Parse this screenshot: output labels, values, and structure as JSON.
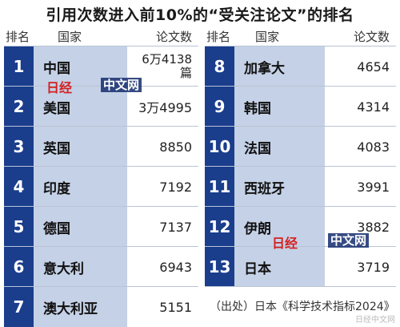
{
  "title": "引用次数进入前10%的“受关注论文”的排名",
  "headers": {
    "rank": "排名",
    "country": "国家",
    "count": "论文数"
  },
  "left_rows": [
    {
      "rank": "1",
      "country": "中国",
      "count_line1": "6万4138",
      "count_line2": "篇"
    },
    {
      "rank": "2",
      "country": "美国",
      "count_line1": "3万4995",
      "count_line2": ""
    },
    {
      "rank": "3",
      "country": "英国",
      "count_line1": "8850",
      "count_line2": ""
    },
    {
      "rank": "4",
      "country": "印度",
      "count_line1": "7192",
      "count_line2": ""
    },
    {
      "rank": "5",
      "country": "德国",
      "count_line1": "7137",
      "count_line2": ""
    },
    {
      "rank": "6",
      "country": "意大利",
      "count_line1": "6943",
      "count_line2": ""
    },
    {
      "rank": "7",
      "country": "澳大利亚",
      "count_line1": "5151",
      "count_line2": ""
    }
  ],
  "right_rows": [
    {
      "rank": "8",
      "country": "加拿大",
      "count": "4654"
    },
    {
      "rank": "9",
      "country": "韩国",
      "count": "4314"
    },
    {
      "rank": "10",
      "country": "法国",
      "count": "4083"
    },
    {
      "rank": "11",
      "country": "西班牙",
      "count": "3991"
    },
    {
      "rank": "12",
      "country": "伊朗",
      "count": "3882"
    },
    {
      "rank": "13",
      "country": "日本",
      "count": "3719"
    }
  ],
  "source": "（出处）日本《科学技术指标2024》",
  "watermark": {
    "logo": "日经",
    "label": "中文网"
  },
  "watermark_bottom": "日经中文网",
  "colors": {
    "rank_bg": "#1a3d8c",
    "country_bg": "#c5d1e6",
    "text": "#111111"
  }
}
